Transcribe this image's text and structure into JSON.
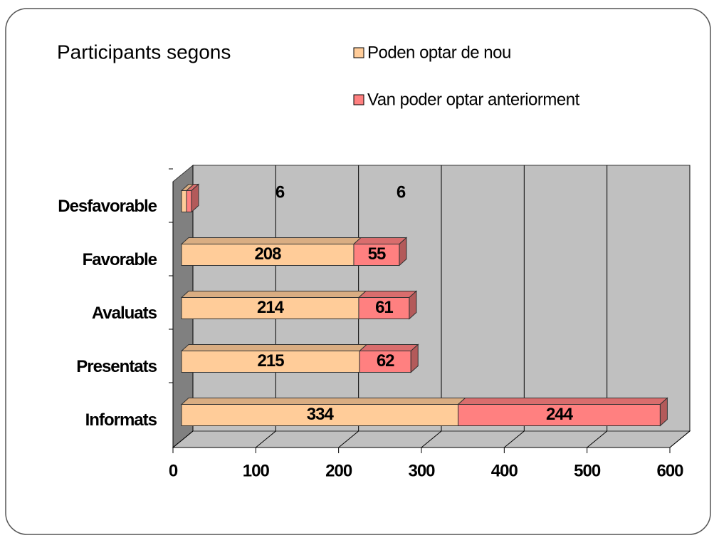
{
  "chart_data": {
    "type": "bar",
    "orientation": "horizontal",
    "stacked": true,
    "three_d": true,
    "title": "Participants segons",
    "categories": [
      "Desfavorable",
      "Favorable",
      "Avaluats",
      "Presentats",
      "Informats"
    ],
    "series": [
      {
        "name": "Poden optar de nou",
        "color": "#ffcc99",
        "values": [
          6,
          208,
          214,
          215,
          334
        ]
      },
      {
        "name": "Van poder optar anteriorment",
        "color": "#ff8080",
        "values": [
          6,
          55,
          61,
          62,
          244
        ]
      }
    ],
    "xlim": [
      0,
      600
    ],
    "xticks": [
      0,
      100,
      200,
      300,
      400,
      500,
      600
    ],
    "grid": true
  }
}
